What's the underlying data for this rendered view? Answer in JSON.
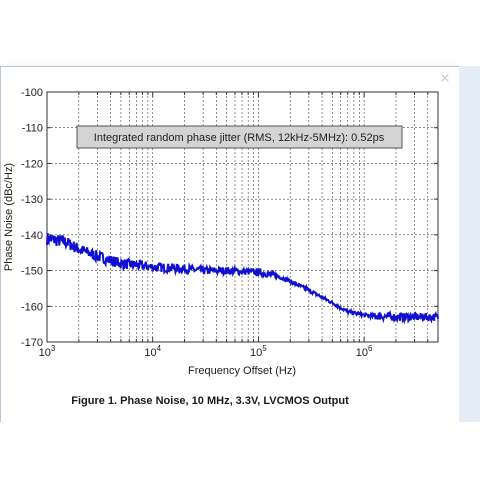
{
  "dialog": {
    "close_label": "×"
  },
  "figure_caption": "Figure 1. Phase Noise, 10 MHz, 3.3V, LVCMOS Output",
  "colors": {
    "trace": "#1010d0",
    "grid": "#444444",
    "annotation_bg": "#d4d4d4"
  },
  "chart_data": {
    "type": "line",
    "title": "",
    "xlabel": "Frequency Offset (Hz)",
    "ylabel": "Phase Noise (dBc/Hz)",
    "x_scale": "log",
    "xlim": [
      1000,
      5000000
    ],
    "ylim": [
      -170,
      -100
    ],
    "y_ticks": [
      "-100",
      "-110",
      "-120",
      "-130",
      "-140",
      "-150",
      "-160",
      "-170"
    ],
    "x_ticks": [
      {
        "base": "10",
        "exp": "3"
      },
      {
        "base": "10",
        "exp": "4"
      },
      {
        "base": "10",
        "exp": "5"
      },
      {
        "base": "10",
        "exp": "6"
      }
    ],
    "grid": true,
    "annotation": "Integrated random phase jitter (RMS, 12kHz-5MHz): 0.52ps",
    "series": [
      {
        "x": [
          1000,
          1500,
          2000,
          3000,
          5000,
          7000,
          10000,
          20000,
          30000,
          50000,
          100000,
          150000,
          200000,
          300000,
          500000,
          700000,
          1000000,
          2000000,
          3000000,
          5000000
        ],
        "y": [
          -141,
          -142,
          -144,
          -146,
          -148,
          -148.5,
          -149,
          -149.5,
          -150,
          -150,
          -150.5,
          -151.5,
          -153,
          -155.5,
          -159,
          -161.5,
          -162.5,
          -163,
          -163,
          -163
        ]
      }
    ]
  }
}
